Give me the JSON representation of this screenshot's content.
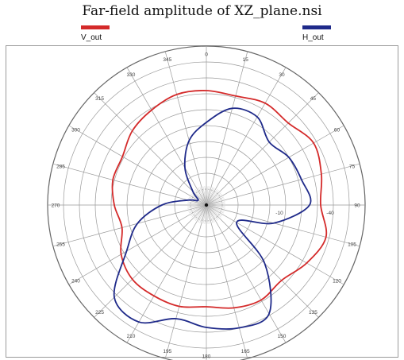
{
  "title": "Far-field amplitude of XZ_plane.nsi",
  "legend": [
    {
      "label": "V_out",
      "color": "#d42a2a"
    },
    {
      "label": "H_out",
      "color": "#1f2a8a"
    }
  ],
  "chart_data": {
    "type": "polar",
    "title": "Far-field amplitude of XZ_plane.nsi",
    "angle_ticks": [
      "0",
      "15",
      "30",
      "45",
      "60",
      "75",
      "90",
      "105",
      "120",
      "135",
      "150",
      "165",
      "180",
      "195",
      "210",
      "225",
      "240",
      "255",
      "270",
      "285",
      "300",
      "315",
      "330",
      "345"
    ],
    "radial_ticks": [
      "-10",
      "-40"
    ],
    "radial_range": [
      0,
      1
    ],
    "grid": true,
    "legend_position": "top",
    "series": [
      {
        "name": "V_out",
        "color": "#d42a2a",
        "theta": [
          0,
          15,
          30,
          45,
          60,
          75,
          90,
          105,
          120,
          135,
          150,
          165,
          180,
          195,
          210,
          225,
          240,
          255,
          270,
          285,
          300,
          315,
          330,
          345
        ],
        "r": [
          0.72,
          0.71,
          0.74,
          0.73,
          0.78,
          0.75,
          0.72,
          0.78,
          0.73,
          0.67,
          0.69,
          0.67,
          0.64,
          0.66,
          0.66,
          0.66,
          0.62,
          0.55,
          0.58,
          0.61,
          0.61,
          0.66,
          0.69,
          0.72
        ]
      },
      {
        "name": "H_out",
        "color": "#1f2a8a",
        "theta": [
          0,
          15,
          30,
          45,
          60,
          75,
          90,
          105,
          120,
          135,
          150,
          165,
          180,
          195,
          210,
          225,
          240,
          255,
          270,
          285,
          300,
          315,
          330,
          345
        ],
        "r": [
          0.52,
          0.63,
          0.64,
          0.56,
          0.6,
          0.62,
          0.65,
          0.44,
          0.22,
          0.52,
          0.79,
          0.8,
          0.77,
          0.74,
          0.85,
          0.82,
          0.58,
          0.45,
          0.28,
          0.12,
          0.06,
          0.12,
          0.27,
          0.42
        ]
      }
    ]
  }
}
